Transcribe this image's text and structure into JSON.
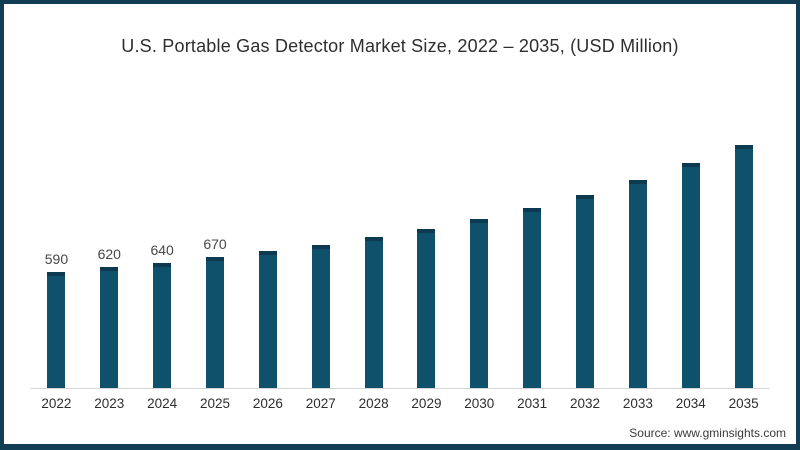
{
  "page": {
    "source": "Source: www.gminsights.com",
    "frame_color": "#113e55",
    "background": "#ffffff"
  },
  "chart_data": {
    "type": "bar",
    "title": "U.S. Portable Gas Detector Market Size, 2022 – 2035, (USD Million)",
    "categories": [
      "2022",
      "2023",
      "2024",
      "2025",
      "2026",
      "2027",
      "2028",
      "2029",
      "2030",
      "2031",
      "2032",
      "2033",
      "2034",
      "2035"
    ],
    "values": [
      590,
      620,
      640,
      670,
      700,
      730,
      770,
      810,
      860,
      920,
      985,
      1060,
      1150,
      1240
    ],
    "data_labels": [
      "590",
      "620",
      "640",
      "670",
      "",
      "",
      "",
      "",
      "",
      "",
      "",
      "",
      "",
      ""
    ],
    "values_estimated": [
      false,
      false,
      false,
      false,
      true,
      true,
      true,
      true,
      true,
      true,
      true,
      true,
      true,
      true
    ],
    "xlabel": "",
    "ylabel": "",
    "ylim": [
      0,
      1300
    ],
    "grid": false,
    "legend": false,
    "bar_color": "#0f506a",
    "bar_cap_color": "#0c3a50",
    "axis_line_color": "#d8d8d8"
  }
}
